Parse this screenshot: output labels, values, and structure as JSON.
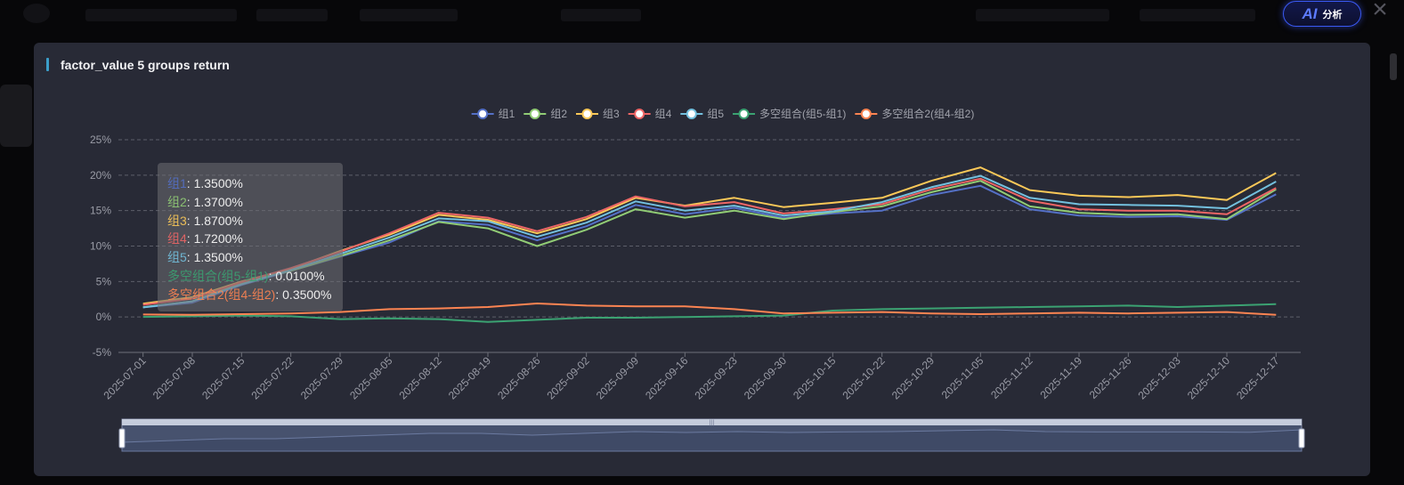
{
  "ai_button": {
    "logo": "AI",
    "label": "分析"
  },
  "close_icon": "close-icon",
  "panel": {
    "title": "factor_value 5 groups return"
  },
  "chart_data": {
    "type": "line",
    "title": "factor_value 5 groups return",
    "xlabel": "",
    "ylabel": "",
    "ylim": [
      -5,
      25
    ],
    "y_ticks": [
      "25%",
      "20%",
      "15%",
      "10%",
      "5%",
      "0%",
      "-5%"
    ],
    "grid": true,
    "legend_position": "top-center",
    "x": [
      "2025-07-01",
      "2025-07-08",
      "2025-07-15",
      "2025-07-22",
      "2025-07-29",
      "2025-08-05",
      "2025-08-12",
      "2025-08-19",
      "2025-08-26",
      "2025-09-02",
      "2025-09-09",
      "2025-09-16",
      "2025-09-23",
      "2025-09-30",
      "2025-10-15",
      "2025-10-22",
      "2025-10-29",
      "2025-11-05",
      "2025-11-12",
      "2025-11-19",
      "2025-11-26",
      "2025-12-03",
      "2025-12-10",
      "2025-12-17"
    ],
    "series": [
      {
        "name": "组1",
        "color": "#5470c6",
        "values": [
          1.35,
          2.0,
          4.5,
          6.5,
          8.5,
          10.5,
          13.5,
          13.0,
          10.8,
          12.8,
          15.8,
          14.5,
          15.4,
          14.0,
          14.6,
          15.0,
          17.2,
          18.5,
          15.2,
          14.3,
          14.1,
          14.2,
          13.7,
          17.3
        ]
      },
      {
        "name": "组2",
        "color": "#91cc75",
        "values": [
          1.37,
          2.2,
          4.8,
          6.5,
          8.6,
          10.8,
          13.4,
          12.5,
          10.0,
          12.3,
          15.2,
          14.0,
          15.0,
          13.8,
          14.8,
          15.6,
          17.6,
          19.2,
          15.6,
          14.7,
          14.4,
          14.5,
          13.8,
          18.0
        ]
      },
      {
        "name": "组3",
        "color": "#fac858",
        "values": [
          1.87,
          2.8,
          5.0,
          6.8,
          9.3,
          11.6,
          14.4,
          13.7,
          11.8,
          13.8,
          16.8,
          15.7,
          16.8,
          15.5,
          16.1,
          16.8,
          19.2,
          21.1,
          17.9,
          17.1,
          16.9,
          17.2,
          16.5,
          20.3
        ]
      },
      {
        "name": "组4",
        "color": "#ee6666",
        "values": [
          1.72,
          2.6,
          4.9,
          6.9,
          9.2,
          11.8,
          14.7,
          14.0,
          12.1,
          14.1,
          17.0,
          15.6,
          16.2,
          14.6,
          15.2,
          15.9,
          18.0,
          19.5,
          16.4,
          15.2,
          15.0,
          15.0,
          14.5,
          18.2
        ]
      },
      {
        "name": "组5",
        "color": "#73c0de",
        "values": [
          1.35,
          2.2,
          4.6,
          6.6,
          8.9,
          11.2,
          13.9,
          13.5,
          11.3,
          13.3,
          16.3,
          15.0,
          15.7,
          14.3,
          14.9,
          16.2,
          18.3,
          19.9,
          16.8,
          15.9,
          15.8,
          15.7,
          15.3,
          19.1
        ]
      },
      {
        "name": "多空组合(组5-组1)",
        "color": "#3ba272",
        "values": [
          0.01,
          0.1,
          0.2,
          0.1,
          -0.3,
          -0.2,
          -0.3,
          -0.7,
          -0.4,
          -0.1,
          -0.1,
          0.0,
          0.1,
          0.2,
          0.9,
          1.1,
          1.2,
          1.3,
          1.4,
          1.5,
          1.6,
          1.4,
          1.6,
          1.8
        ]
      },
      {
        "name": "多空组合2(组4-组2)",
        "color": "#fc8452",
        "values": [
          0.35,
          0.3,
          0.4,
          0.5,
          0.7,
          1.1,
          1.2,
          1.4,
          1.9,
          1.6,
          1.5,
          1.5,
          1.1,
          0.5,
          0.6,
          0.7,
          0.5,
          0.4,
          0.5,
          0.6,
          0.5,
          0.6,
          0.7,
          0.3
        ]
      }
    ],
    "tooltip": [
      {
        "name": "组1",
        "value": "1.3500%",
        "color": "#5470c6"
      },
      {
        "name": "组2",
        "value": "1.3700%",
        "color": "#91cc75"
      },
      {
        "name": "组3",
        "value": "1.8700%",
        "color": "#fac858"
      },
      {
        "name": "组4",
        "value": "1.7200%",
        "color": "#ee6666"
      },
      {
        "name": "组5",
        "value": "1.3500%",
        "color": "#73c0de"
      },
      {
        "name": "多空组合(组5-组1)",
        "value": "0.0100%",
        "color": "#3ba272"
      },
      {
        "name": "多空组合2(组4-组2)",
        "value": "0.3500%",
        "color": "#fc8452"
      }
    ],
    "overview_line": [
      0.3,
      0.4,
      0.5,
      0.5,
      0.6,
      0.7,
      0.8,
      0.8,
      0.7,
      0.8,
      0.9,
      0.85,
      0.9,
      0.85,
      0.88,
      0.9,
      0.95,
      1.0,
      0.9,
      0.88,
      0.88,
      0.88,
      0.86,
      1.0
    ]
  }
}
